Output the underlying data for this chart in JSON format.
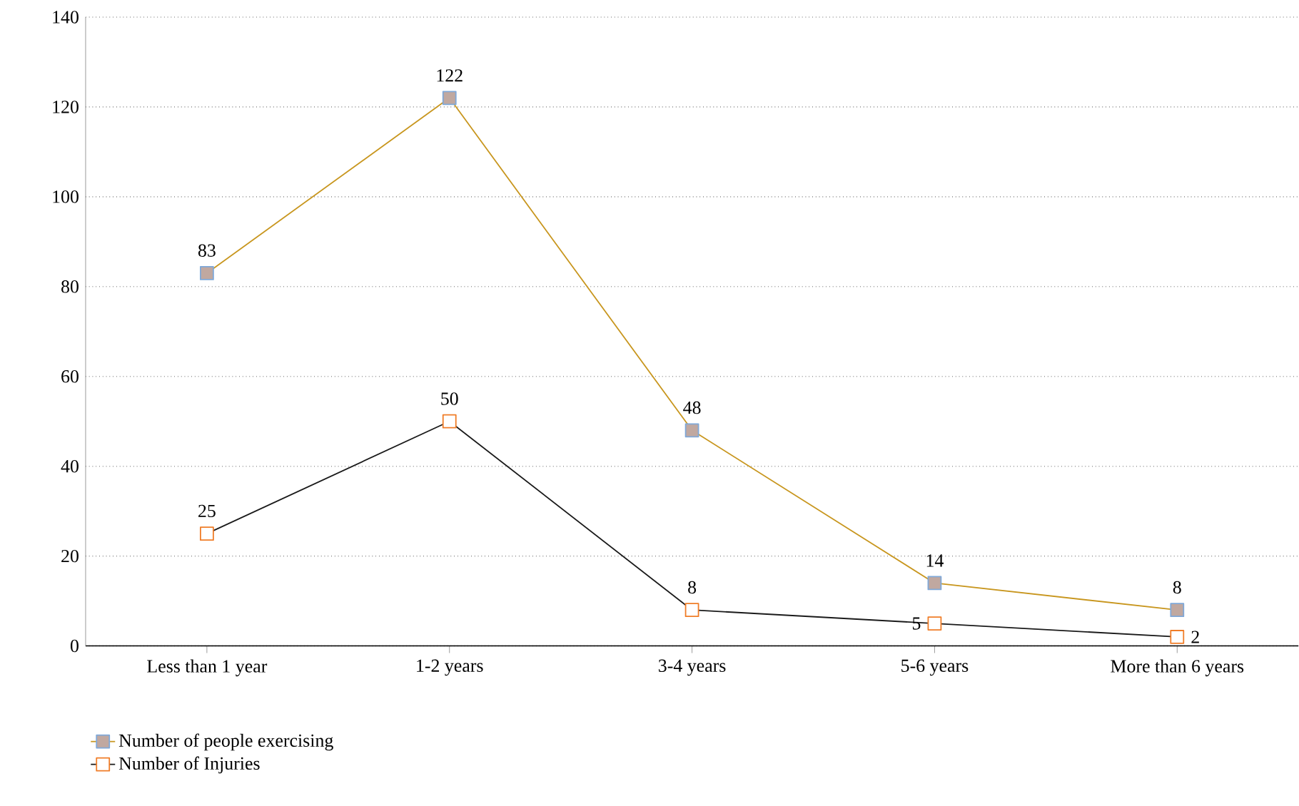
{
  "chart_data": {
    "type": "line",
    "categories": [
      "Less than 1 year",
      "1-2 years",
      "3-4 years",
      "5-6 years",
      "More than 6 years"
    ],
    "series": [
      {
        "name": "Number of people exercising",
        "color": "#c8961e",
        "values": [
          83,
          122,
          48,
          14,
          8
        ]
      },
      {
        "name": "Number of Injuries",
        "color": "#1a1a1a",
        "values": [
          25,
          50,
          8,
          5,
          2
        ]
      }
    ],
    "ylim": [
      0,
      140
    ],
    "yticks": [
      0,
      20,
      40,
      60,
      80,
      100,
      120,
      140
    ],
    "grid": "y",
    "legend": "bottom left",
    "marker": "square",
    "line_style": "solid",
    "data_labels": true
  }
}
